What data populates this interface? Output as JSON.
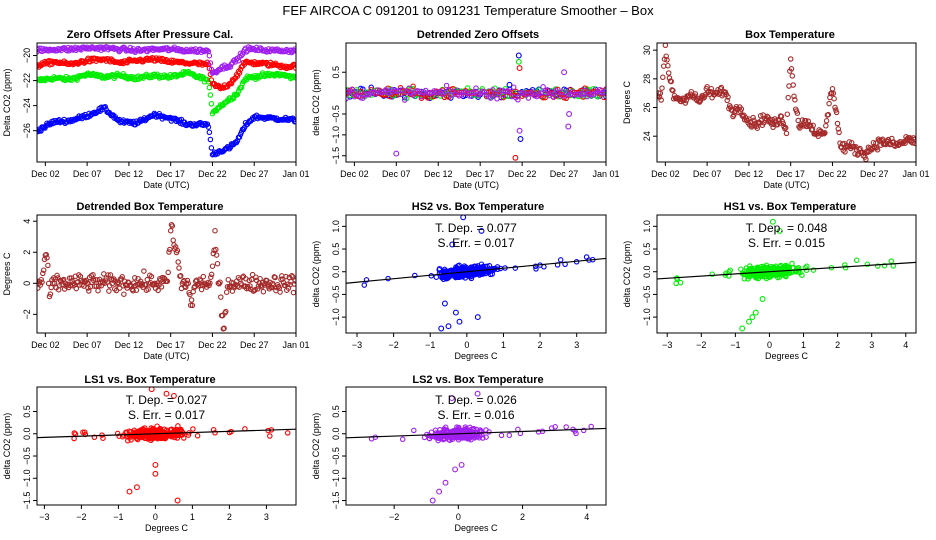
{
  "figure": {
    "main_title": "FEF   AIRCOA C   091201 to 091231   Temperature Smoother – Box"
  },
  "colors": {
    "blue": "#0000ff",
    "red": "#ff0000",
    "green": "#00ee00",
    "purple": "#a020f0",
    "brown": "#a52a2a",
    "black": "#000000"
  },
  "chart_data": [
    {
      "id": "p1",
      "type": "scatter",
      "title": "Zero Offsets After Pressure Cal.",
      "xlabel": "Date (UTC)",
      "ylabel": "Delta CO2 (ppm)",
      "xlim": [
        0,
        31
      ],
      "ylim": [
        -28.5,
        -19
      ],
      "xticks": [
        1,
        6,
        11,
        16,
        21,
        26,
        31
      ],
      "xticklabels": [
        "Dec 02",
        "Dec 07",
        "Dec 12",
        "Dec 17",
        "Dec 22",
        "Dec 27",
        "Jan 01"
      ],
      "yticks": [
        -26,
        -24,
        -22,
        -20
      ],
      "yticklabels": [
        "−26",
        "−24",
        "−22",
        "−20"
      ],
      "series": [
        {
          "name": "HS1",
          "color": "green",
          "x": [
            0,
            2,
            4,
            6,
            8,
            10,
            12,
            14,
            16,
            18,
            20.5,
            21,
            22,
            23,
            24,
            25,
            27,
            29,
            31
          ],
          "y": [
            -22.0,
            -21.8,
            -21.9,
            -21.5,
            -21.7,
            -21.6,
            -21.8,
            -21.6,
            -21.7,
            -21.4,
            -22.0,
            -24.5,
            -24.0,
            -23.5,
            -23.0,
            -21.8,
            -21.6,
            -21.5,
            -21.8
          ]
        },
        {
          "name": "HS2",
          "color": "blue",
          "x": [
            0,
            2,
            4,
            6,
            8,
            10,
            12,
            14,
            16,
            18,
            20.5,
            21,
            22,
            23,
            24,
            25,
            26,
            28,
            30,
            31
          ],
          "y": [
            -26.0,
            -25.3,
            -25.2,
            -24.8,
            -24.2,
            -25.3,
            -25.4,
            -24.7,
            -25.0,
            -25.5,
            -25.5,
            -27.9,
            -27.6,
            -27.4,
            -26.8,
            -25.5,
            -24.9,
            -25.0,
            -25.1,
            -25.2
          ]
        },
        {
          "name": "LS1",
          "color": "red",
          "x": [
            0,
            2,
            4,
            6,
            8,
            10,
            12,
            14,
            16,
            18,
            20.5,
            21,
            22,
            23,
            24,
            25,
            26,
            28,
            30,
            31
          ],
          "y": [
            -20.8,
            -20.5,
            -20.7,
            -20.4,
            -20.3,
            -20.6,
            -20.4,
            -20.3,
            -20.5,
            -20.6,
            -20.7,
            -22.3,
            -22.6,
            -22.3,
            -21.5,
            -20.5,
            -20.6,
            -20.7,
            -20.9,
            -20.8
          ]
        },
        {
          "name": "LS2",
          "color": "purple",
          "x": [
            0,
            2,
            4,
            6,
            8,
            10,
            12,
            14,
            16,
            18,
            20.5,
            21,
            22,
            23,
            24,
            25,
            26,
            28,
            30,
            31
          ],
          "y": [
            -19.6,
            -19.5,
            -19.5,
            -19.4,
            -19.4,
            -19.5,
            -19.6,
            -19.5,
            -19.5,
            -19.6,
            -19.6,
            -21.4,
            -21.0,
            -20.8,
            -20.3,
            -19.5,
            -19.5,
            -19.6,
            -19.6,
            -19.6
          ]
        }
      ]
    },
    {
      "id": "p2",
      "type": "scatter",
      "title": "Detrended Zero Offsets",
      "xlabel": "Date (UTC)",
      "ylabel": "delta CO2 (ppm)",
      "xlim": [
        0,
        31
      ],
      "ylim": [
        -1.65,
        1.2
      ],
      "xticks": [
        1,
        6,
        11,
        16,
        21,
        26,
        31
      ],
      "xticklabels": [
        "Dec 02",
        "Dec 07",
        "Dec 12",
        "Dec 17",
        "Dec 22",
        "Dec 27",
        "Jan 01"
      ],
      "yticks": [
        -1.5,
        -1.0,
        -0.5,
        0.5
      ],
      "yticklabels": [
        "−1.5",
        "−1.0",
        "−0.5",
        "0.5"
      ],
      "series_colors": [
        "blue",
        "green",
        "red",
        "purple"
      ]
    },
    {
      "id": "p3",
      "type": "scatter",
      "title": "Box Temperature",
      "xlabel": "Date (UTC)",
      "ylabel": "Degrees C",
      "xlim": [
        0,
        31
      ],
      "ylim": [
        22.2,
        30.5
      ],
      "xticks": [
        1,
        6,
        11,
        16,
        21,
        26,
        31
      ],
      "xticklabels": [
        "Dec 02",
        "Dec 07",
        "Dec 12",
        "Dec 17",
        "Dec 22",
        "Dec 27",
        "Jan 01"
      ],
      "yticks": [
        24,
        26,
        28,
        30
      ],
      "yticklabels": [
        "24",
        "26",
        "28",
        "30"
      ],
      "color": "brown",
      "x": [
        0,
        0.5,
        1,
        1.5,
        2,
        3,
        4,
        5,
        6,
        7,
        8,
        9,
        10,
        11,
        12,
        13,
        14,
        15,
        15.5,
        16,
        16.5,
        17,
        18,
        19,
        20,
        21,
        21.5,
        22,
        23,
        24,
        25,
        26,
        27,
        28,
        29,
        30,
        31
      ],
      "y": [
        26.8,
        26.6,
        30.2,
        28.0,
        26.8,
        26.5,
        27.0,
        26.4,
        27.1,
        26.9,
        27.2,
        25.7,
        26.0,
        25.0,
        24.9,
        25.3,
        24.8,
        25.2,
        24.5,
        29.5,
        26.5,
        24.8,
        25.0,
        24.3,
        24.0,
        27.5,
        25.5,
        23.2,
        23.3,
        23.0,
        22.8,
        23.4,
        23.6,
        23.5,
        23.4,
        23.8,
        23.6
      ]
    },
    {
      "id": "p4",
      "type": "scatter",
      "title": "Detrended Box Temperature",
      "xlabel": "Date (UTC)",
      "ylabel": "Degrees C",
      "xlim": [
        0,
        31
      ],
      "ylim": [
        -3.2,
        4.4
      ],
      "xticks": [
        1,
        6,
        11,
        16,
        21,
        26,
        31
      ],
      "xticklabels": [
        "Dec 02",
        "Dec 07",
        "Dec 12",
        "Dec 17",
        "Dec 22",
        "Dec 27",
        "Jan 01"
      ],
      "yticks": [
        -2,
        0,
        2,
        4
      ],
      "yticklabels": [
        "−2",
        "0",
        "2",
        "4"
      ],
      "color": "brown"
    },
    {
      "id": "p5",
      "type": "scatter",
      "title": "HS2 vs. Box Temperature",
      "xlabel": "Degrees C",
      "ylabel": "delta CO2 (ppm)",
      "xlim": [
        -3.3,
        3.8
      ],
      "ylim": [
        -1.35,
        1.25
      ],
      "xticks": [
        -3,
        -2,
        -1,
        0,
        1,
        2,
        3
      ],
      "xticklabels": [
        "−3",
        "−2",
        "−1",
        "0",
        "1",
        "2",
        "3"
      ],
      "yticks": [
        -1.0,
        -0.5,
        0.0,
        0.5,
        1.0
      ],
      "yticklabels": [
        "−1.0",
        "−0.5",
        "0.0",
        "0.5",
        "1.0"
      ],
      "color": "blue",
      "slope": 0.077,
      "stats": [
        "T. Dep. = 0.077",
        "S. Err. = 0.017"
      ]
    },
    {
      "id": "p6",
      "type": "scatter",
      "title": "HS1 vs. Box Temperature",
      "xlabel": "Degrees C",
      "ylabel": "delta CO2 (ppm)",
      "xlim": [
        -3.3,
        4.3
      ],
      "ylim": [
        -1.35,
        1.25
      ],
      "xticks": [
        -3,
        -2,
        -1,
        0,
        1,
        2,
        3,
        4
      ],
      "xticklabels": [
        "−3",
        "−2",
        "−1",
        "0",
        "1",
        "2",
        "3",
        "4"
      ],
      "yticks": [
        -1.0,
        -0.5,
        0.0,
        0.5,
        1.0
      ],
      "yticklabels": [
        "−1.0",
        "−0.5",
        "0.0",
        "0.5",
        "1.0"
      ],
      "color": "green",
      "slope": 0.048,
      "stats": [
        "T. Dep. = 0.048",
        "S. Err. = 0.015"
      ]
    },
    {
      "id": "p7",
      "type": "scatter",
      "title": "LS1 vs. Box Temperature",
      "xlabel": "Degrees C",
      "ylabel": "delta CO2 (ppm)",
      "xlim": [
        -3.2,
        3.8
      ],
      "ylim": [
        -1.6,
        1.05
      ],
      "xticks": [
        -3,
        -2,
        -1,
        0,
        1,
        2,
        3
      ],
      "xticklabels": [
        "−3",
        "−2",
        "−1",
        "0",
        "1",
        "2",
        "3"
      ],
      "yticks": [
        -1.5,
        -1.0,
        -0.5,
        0.0,
        0.5
      ],
      "yticklabels": [
        "−1.5",
        "−1.0",
        "−0.5",
        "0.0",
        "0.5"
      ],
      "color": "red",
      "slope": 0.027,
      "stats": [
        "T. Dep. = 0.027",
        "S. Err. = 0.017"
      ]
    },
    {
      "id": "p8",
      "type": "scatter",
      "title": "LS2 vs. Box Temperature",
      "xlabel": "Degrees C",
      "ylabel": "delta CO2 (ppm)",
      "xlim": [
        -3.5,
        4.6
      ],
      "ylim": [
        -1.6,
        1.05
      ],
      "xticks": [
        -2,
        0,
        2,
        4
      ],
      "xticklabels": [
        "−2",
        "0",
        "2",
        "4"
      ],
      "yticks": [
        -1.5,
        -1.0,
        -0.5,
        0.0,
        0.5
      ],
      "yticklabels": [
        "−1.5",
        "−1.0",
        "−0.5",
        "0.0",
        "0.5"
      ],
      "color": "purple",
      "slope": 0.026,
      "stats": [
        "T. Dep. = 0.026",
        "S. Err. = 0.016"
      ]
    }
  ]
}
